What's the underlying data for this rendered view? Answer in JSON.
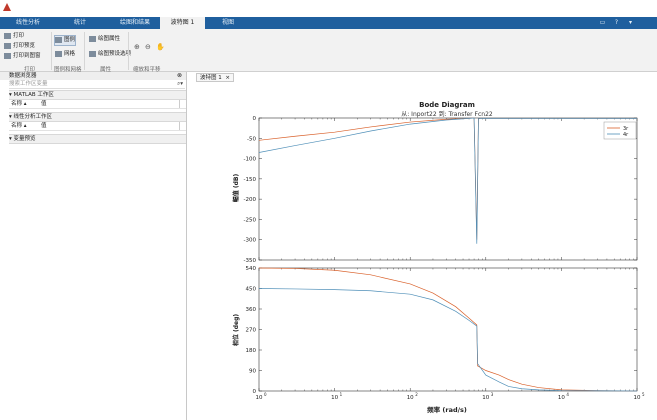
{
  "window": {
    "tabs": [
      "线性分析",
      "统计",
      "绘图和结果",
      "波特图 1",
      "视图"
    ],
    "active_tab": 3
  },
  "ribbon": {
    "print": "打印",
    "print_preview": "打印预览",
    "print_to_figure": "打印到图窗",
    "legend": "图例",
    "grid": "网格",
    "plot_properties": "绘图属性",
    "plot_options": "绘图预设选项",
    "groups": [
      "打印",
      "图例和网格",
      "属性",
      "缩放和平移"
    ]
  },
  "data_browser": {
    "title": "数据浏览器",
    "search_placeholder": "搜索工作区变量",
    "matlab_workspace": "▾ MATLAB 工作区",
    "linear_workspace": "▾ 线性分析工作区",
    "variable_preview": "▾ 变量预览",
    "col_name": "名称 ▴",
    "col_value": "值"
  },
  "document_tab": {
    "label": "波特图 1",
    "close": "×"
  },
  "chart_data": {
    "type": "line",
    "title": "Bode Diagram",
    "subtitle": "从: Inport22  到: Transfer Fcn22",
    "xlabel": "频率 (rad/s)",
    "xscale": "log",
    "xlim": [
      1,
      100000
    ],
    "x_ticks": [
      1,
      10,
      100,
      1000,
      10000,
      100000
    ],
    "x_tick_labels": [
      "10",
      "10",
      "10",
      "10",
      "10",
      "10"
    ],
    "x_tick_exponents": [
      "0",
      "1",
      "2",
      "3",
      "4",
      "5"
    ],
    "legend": {
      "position": "top-right",
      "entries": [
        "3r",
        "4r"
      ]
    },
    "panels": [
      {
        "name": "magnitude",
        "ylabel": "幅值 (dB)",
        "ylim": [
          -350,
          0
        ],
        "y_ticks": [
          0,
          -50,
          -100,
          -150,
          -200,
          -250,
          -300,
          -350
        ],
        "series": [
          {
            "name": "3r",
            "color": "#d9602a",
            "x": [
              1,
              3,
              10,
              30,
              100,
              300,
              600,
              700,
              760,
              800,
              850,
              1000,
              3000,
              10000,
              30000,
              100000
            ],
            "y": [
              -55,
              -45,
              -35,
              -22,
              -10,
              -3,
              -1,
              0,
              -300,
              -2,
              -1,
              -1,
              -1,
              -1,
              -1,
              -1
            ]
          },
          {
            "name": "4r",
            "color": "#4f8fb8",
            "x": [
              1,
              3,
              10,
              30,
              100,
              300,
              600,
              700,
              760,
              800,
              850,
              1000,
              3000,
              10000,
              30000,
              100000
            ],
            "y": [
              -85,
              -68,
              -50,
              -32,
              -15,
              -5,
              -1,
              0,
              -310,
              -2,
              -1,
              -1,
              -1,
              -1,
              -1,
              -1
            ]
          }
        ]
      },
      {
        "name": "phase",
        "ylabel": "相位 (deg)",
        "ylim": [
          0,
          540
        ],
        "y_ticks": [
          540,
          450,
          360,
          270,
          180,
          90,
          0
        ],
        "series": [
          {
            "name": "3r",
            "color": "#d9602a",
            "x": [
              1,
              3,
              10,
              30,
              100,
              200,
              400,
              600,
              760,
              780,
              1000,
              1500,
              2000,
              3000,
              5000,
              10000,
              30000,
              100000
            ],
            "y": [
              540,
              538,
              530,
              510,
              470,
              430,
              370,
              320,
              290,
              110,
              90,
              70,
              50,
              30,
              15,
              5,
              2,
              0
            ]
          },
          {
            "name": "4r",
            "color": "#4f8fb8",
            "x": [
              1,
              3,
              10,
              30,
              100,
              200,
              400,
              600,
              760,
              780,
              1000,
              1500,
              2000,
              3000,
              5000,
              10000,
              30000,
              100000
            ],
            "y": [
              450,
              448,
              445,
              440,
              425,
              400,
              350,
              310,
              285,
              120,
              70,
              40,
              20,
              10,
              5,
              2,
              1,
              0
            ]
          }
        ]
      }
    ]
  }
}
